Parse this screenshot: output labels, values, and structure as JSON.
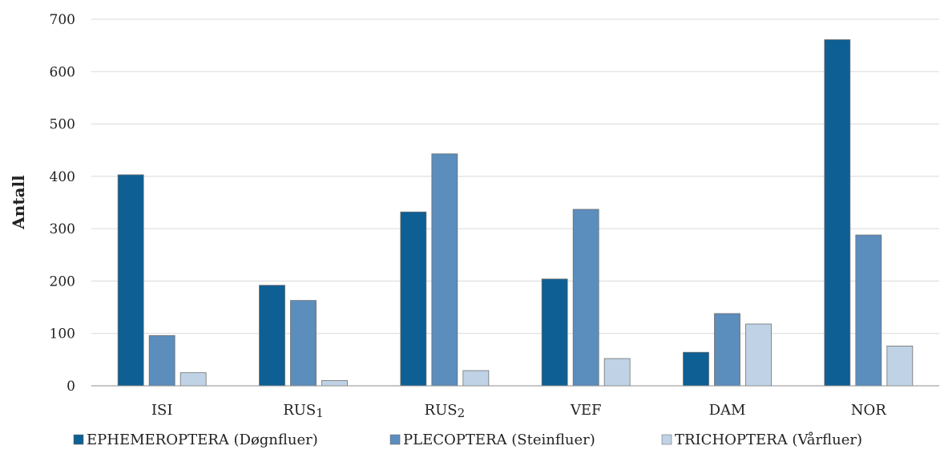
{
  "chart_data": {
    "type": "bar",
    "title": "",
    "xlabel": "",
    "ylabel": "Antall",
    "ylim": [
      0,
      700
    ],
    "yticks": [
      0,
      100,
      200,
      300,
      400,
      500,
      600,
      700
    ],
    "grid": true,
    "legend_position": "bottom",
    "categories": [
      "ISI",
      "RUS1",
      "RUS2",
      "VEF",
      "DAM",
      "NOR"
    ],
    "series": [
      {
        "name": "EPHEMEROPTERA (Døgnfluer)",
        "color": "#0e5f94",
        "values": [
          403,
          192,
          332,
          204,
          64,
          661
        ]
      },
      {
        "name": "PLECOPTERA (Steinfluer)",
        "color": "#5b8dbd",
        "values": [
          96,
          163,
          443,
          337,
          138,
          288
        ]
      },
      {
        "name": "TRICHOPTERA (Vårfluer)",
        "color": "#c0d3e6",
        "values": [
          25,
          10,
          29,
          52,
          118,
          76
        ]
      }
    ]
  }
}
